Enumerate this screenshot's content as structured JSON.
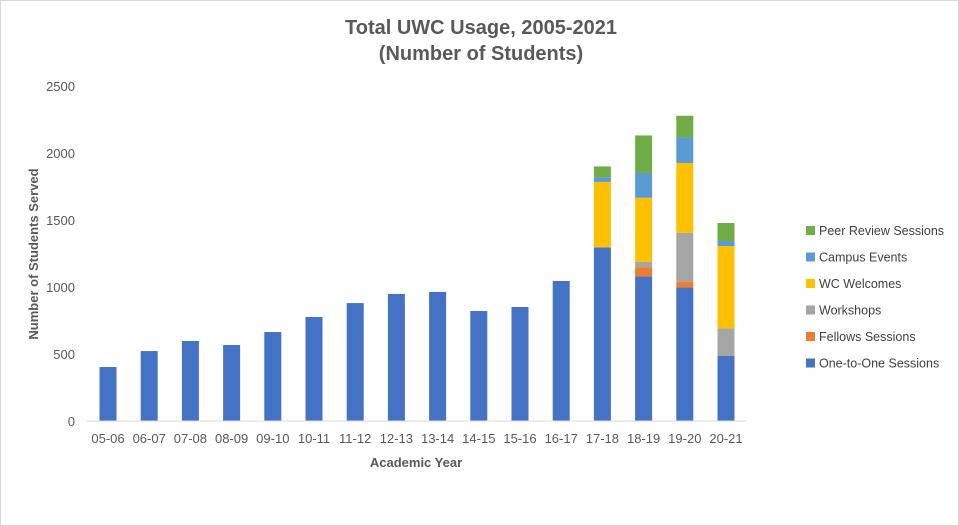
{
  "chart_data": {
    "type": "bar",
    "stacked": true,
    "title": [
      "Total UWC Usage, 2005-2021",
      "(Number of Students)"
    ],
    "xlabel": "Academic Year",
    "ylabel": "Number of Students Served",
    "ylim": [
      0,
      2500
    ],
    "yticks": [
      0,
      500,
      1000,
      1500,
      2000,
      2500
    ],
    "grid": false,
    "legend_position": "right",
    "categories": [
      "05-06",
      "06-07",
      "07-08",
      "08-09",
      "09-10",
      "10-11",
      "11-12",
      "12-13",
      "13-14",
      "14-15",
      "15-16",
      "16-17",
      "17-18",
      "18-19",
      "19-20",
      "20-21"
    ],
    "series": [
      {
        "name": "One-to-One Sessions",
        "color": "#4472c4",
        "values": [
          403,
          522,
          597,
          567,
          664,
          776,
          880,
          948,
          963,
          821,
          851,
          1045,
          1296,
          1079,
          997,
          485
        ]
      },
      {
        "name": "Fellows Sessions",
        "color": "#ed7d31",
        "values": [
          0,
          0,
          0,
          0,
          0,
          0,
          0,
          0,
          0,
          0,
          0,
          0,
          0,
          67,
          43,
          0
        ]
      },
      {
        "name": "Workshops",
        "color": "#a5a5a5",
        "values": [
          0,
          0,
          0,
          0,
          0,
          0,
          0,
          0,
          0,
          0,
          0,
          0,
          0,
          41,
          365,
          206
        ]
      },
      {
        "name": "WC Welcomes",
        "color": "#ffc000",
        "values": [
          0,
          0,
          0,
          0,
          0,
          0,
          0,
          0,
          0,
          0,
          0,
          0,
          488,
          479,
          520,
          615
        ]
      },
      {
        "name": "Campus Events",
        "color": "#5b9bd5",
        "values": [
          0,
          0,
          0,
          0,
          0,
          0,
          0,
          0,
          0,
          0,
          0,
          0,
          34,
          185,
          191,
          37
        ]
      },
      {
        "name": "Peer Review Sessions",
        "color": "#70ad47",
        "values": [
          0,
          0,
          0,
          0,
          0,
          0,
          0,
          0,
          0,
          0,
          0,
          0,
          82,
          280,
          162,
          135
        ]
      }
    ]
  }
}
